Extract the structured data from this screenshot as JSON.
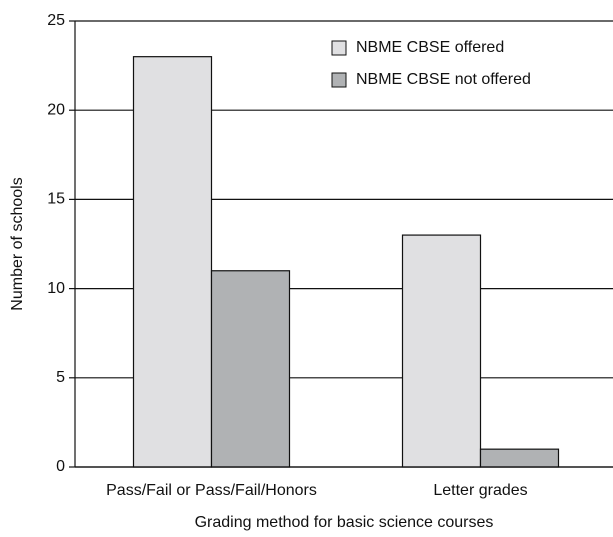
{
  "chart_data": {
    "type": "bar",
    "xlabel": "Grading method for basic science courses",
    "ylabel": "Number of schools",
    "categories": [
      "Pass/Fail or Pass/Fail/Honors",
      "Letter grades"
    ],
    "series": [
      {
        "name": "NBME CBSE offered",
        "color": "#e0e0e2",
        "values": [
          23,
          13
        ]
      },
      {
        "name": "NBME CBSE not offered",
        "color": "#b0b2b4",
        "values": [
          11,
          1
        ]
      }
    ],
    "ylim": [
      0,
      25
    ],
    "yticks": [
      0,
      5,
      10,
      15,
      20,
      25
    ],
    "grid": true,
    "legend": "upper right"
  }
}
